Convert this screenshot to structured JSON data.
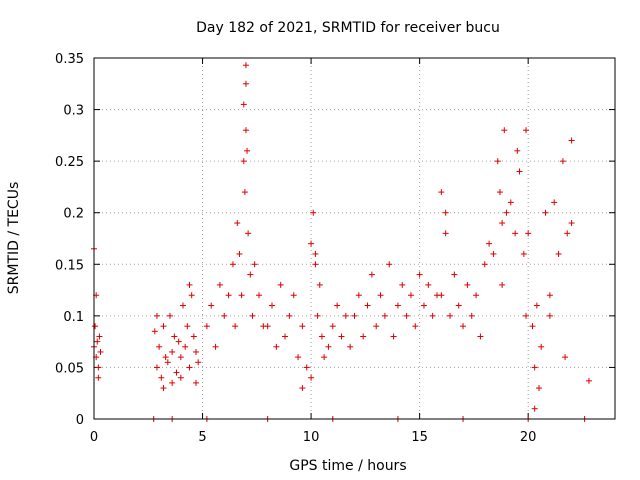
{
  "chart_data": {
    "type": "scatter",
    "title": "Day 182 of 2021, SRMTID for receiver bucu",
    "xlabel": "GPS time / hours",
    "ylabel": "SRMTID / TECUs",
    "xlim": [
      0,
      24
    ],
    "ylim": [
      0,
      0.35
    ],
    "xticks": [
      0,
      5,
      10,
      15,
      20
    ],
    "xtick_labels": [
      "0",
      "5",
      "10",
      "15",
      "20"
    ],
    "yticks": [
      0,
      0.05,
      0.1,
      0.15,
      0.2,
      0.25,
      0.3,
      0.35
    ],
    "ytick_labels": [
      "0",
      "0.05",
      "0.1",
      "0.15",
      "0.2",
      "0.25",
      "0.3",
      "0.35"
    ],
    "grid": true,
    "marker": "plus",
    "color": "#e00000",
    "series": [
      {
        "name": "SRMTID",
        "x": [
          0.0,
          0.05,
          0.1,
          0.15,
          0.2,
          0.25,
          0.3,
          0.0,
          0.1,
          0.2,
          2.8,
          2.9,
          3.0,
          3.1,
          3.2,
          3.3,
          3.4,
          3.5,
          3.6,
          3.7,
          3.8,
          3.9,
          4.0,
          4.1,
          4.2,
          4.3,
          4.4,
          4.5,
          4.6,
          4.7,
          4.8,
          2.9,
          3.2,
          3.6,
          4.0,
          4.4,
          4.7,
          5.2,
          5.4,
          5.6,
          5.8,
          6.0,
          6.2,
          6.4,
          6.5,
          6.6,
          6.7,
          6.8,
          6.9,
          7.0,
          7.1,
          7.2,
          7.3,
          7.4,
          7.6,
          7.8,
          6.9,
          7.0,
          7.0,
          6.95,
          7.05,
          8.0,
          8.2,
          8.4,
          8.6,
          8.8,
          9.0,
          9.2,
          9.4,
          9.6,
          9.8,
          10.0,
          10.1,
          10.2,
          10.3,
          10.4,
          10.5,
          10.6,
          10.8,
          11.0,
          11.2,
          11.4,
          11.6,
          11.8,
          10.0,
          10.2,
          9.6,
          12.0,
          12.2,
          12.4,
          12.6,
          12.8,
          13.0,
          13.2,
          13.4,
          13.6,
          13.8,
          14.0,
          14.2,
          14.4,
          14.6,
          14.8,
          15.0,
          15.2,
          15.4,
          15.6,
          15.8,
          16.0,
          16.2,
          16.4,
          16.6,
          16.8,
          17.0,
          17.2,
          17.4,
          17.6,
          17.8,
          18.0,
          16.2,
          16.0,
          18.2,
          18.4,
          18.6,
          18.7,
          18.8,
          18.9,
          19.0,
          19.2,
          19.4,
          19.6,
          19.8,
          19.9,
          20.0,
          18.8,
          19.9,
          19.5,
          20.2,
          20.3,
          20.4,
          20.5,
          20.6,
          20.8,
          21.0,
          21.2,
          21.4,
          21.6,
          21.8,
          22.0,
          21.0,
          21.7,
          22.0,
          20.3,
          22.8,
          2.75,
          3.6,
          5.2,
          8.0,
          11.0,
          14.0,
          17.0,
          20.0,
          22.6
        ],
        "y": [
          0.07,
          0.09,
          0.06,
          0.075,
          0.05,
          0.08,
          0.065,
          0.165,
          0.12,
          0.04,
          0.085,
          0.05,
          0.07,
          0.04,
          0.09,
          0.06,
          0.055,
          0.1,
          0.065,
          0.08,
          0.045,
          0.075,
          0.06,
          0.11,
          0.07,
          0.09,
          0.05,
          0.12,
          0.08,
          0.065,
          0.055,
          0.1,
          0.03,
          0.035,
          0.04,
          0.13,
          0.035,
          0.09,
          0.11,
          0.07,
          0.13,
          0.1,
          0.12,
          0.15,
          0.09,
          0.19,
          0.16,
          0.12,
          0.25,
          0.28,
          0.18,
          0.14,
          0.1,
          0.15,
          0.12,
          0.09,
          0.305,
          0.325,
          0.343,
          0.22,
          0.26,
          0.09,
          0.11,
          0.07,
          0.13,
          0.08,
          0.1,
          0.12,
          0.06,
          0.09,
          0.05,
          0.17,
          0.2,
          0.16,
          0.1,
          0.13,
          0.08,
          0.06,
          0.07,
          0.09,
          0.11,
          0.08,
          0.1,
          0.07,
          0.04,
          0.15,
          0.03,
          0.1,
          0.12,
          0.08,
          0.11,
          0.14,
          0.09,
          0.12,
          0.1,
          0.15,
          0.08,
          0.11,
          0.13,
          0.1,
          0.12,
          0.09,
          0.14,
          0.11,
          0.13,
          0.1,
          0.12,
          0.12,
          0.18,
          0.1,
          0.14,
          0.11,
          0.09,
          0.13,
          0.1,
          0.12,
          0.08,
          0.15,
          0.2,
          0.22,
          0.17,
          0.16,
          0.25,
          0.22,
          0.19,
          0.28,
          0.2,
          0.21,
          0.18,
          0.24,
          0.16,
          0.28,
          0.18,
          0.13,
          0.1,
          0.26,
          0.09,
          0.05,
          0.11,
          0.03,
          0.07,
          0.2,
          0.12,
          0.21,
          0.16,
          0.25,
          0.18,
          0.27,
          0.1,
          0.06,
          0.19,
          0.01,
          0.037,
          0.0,
          0.0,
          0.0,
          0.0,
          0.0,
          0.0,
          0.0,
          0.0,
          0.0
        ]
      }
    ]
  }
}
